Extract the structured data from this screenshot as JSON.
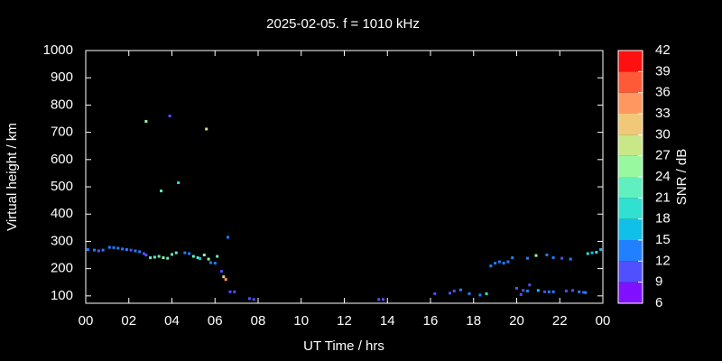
{
  "chart_data": {
    "type": "scatter",
    "title": "2025-02-05. f = 1010 kHz",
    "x_label": "UT Time / hrs",
    "y_label": "Virtual height / km",
    "colorbar_label": "SNR / dB",
    "xlim": [
      0,
      24
    ],
    "xticks": [
      {
        "value": 0,
        "label": "00"
      },
      {
        "value": 2,
        "label": "02"
      },
      {
        "value": 4,
        "label": "04"
      },
      {
        "value": 6,
        "label": "06"
      },
      {
        "value": 8,
        "label": "08"
      },
      10,
      12,
      14,
      16,
      18,
      20,
      22,
      {
        "value": 24,
        "label": "00"
      }
    ],
    "ylim": [
      73,
      1000
    ],
    "yticks": [
      100,
      200,
      300,
      400,
      500,
      600,
      700,
      800,
      900,
      1000
    ],
    "clim": [
      6,
      42
    ],
    "cticks": [
      6,
      9,
      12,
      15,
      18,
      21,
      24,
      27,
      30,
      33,
      36,
      39,
      42
    ],
    "colorscale": [
      "#8010ff",
      "#5050ff",
      "#2080ff",
      "#10c0e8",
      "#30e0d0",
      "#60f0c0",
      "#98f8a0",
      "#c8e888",
      "#f0c878",
      "#ff9860",
      "#ff5a38",
      "#ff1010"
    ],
    "x": [
      0.1,
      0.4,
      0.6,
      0.8,
      1.1,
      1.3,
      1.5,
      1.7,
      1.9,
      2.1,
      2.3,
      2.5,
      2.7,
      2.8,
      2.8,
      3.0,
      3.2,
      3.4,
      3.5,
      3.6,
      3.8,
      3.9,
      4.0,
      4.2,
      4.3,
      4.6,
      4.8,
      5.0,
      5.2,
      5.3,
      5.5,
      5.6,
      5.7,
      5.8,
      6.0,
      6.1,
      6.3,
      6.4,
      6.5,
      6.6,
      6.7,
      6.9,
      7.6,
      7.8,
      13.6,
      13.8,
      16.2,
      16.9,
      17.1,
      17.4,
      17.8,
      18.3,
      18.6,
      18.8,
      19.0,
      19.2,
      19.4,
      19.6,
      19.8,
      20.0,
      20.2,
      20.3,
      20.5,
      20.6,
      20.5,
      20.9,
      21.0,
      21.3,
      21.4,
      21.5,
      21.7,
      21.7,
      22.1,
      22.3,
      22.5,
      22.6,
      22.9,
      23.1,
      23.2,
      23.3,
      23.5,
      23.7,
      23.9
    ],
    "y": [
      270,
      268,
      265,
      268,
      278,
      277,
      275,
      272,
      270,
      268,
      265,
      262,
      255,
      250,
      740,
      240,
      242,
      245,
      485,
      240,
      238,
      760,
      252,
      258,
      515,
      258,
      255,
      245,
      240,
      237,
      250,
      712,
      235,
      222,
      220,
      245,
      190,
      170,
      160,
      315,
      115,
      115,
      90,
      87,
      87,
      87,
      108,
      110,
      118,
      122,
      108,
      103,
      108,
      210,
      220,
      225,
      220,
      225,
      240,
      128,
      105,
      120,
      118,
      140,
      238,
      248,
      120,
      115,
      250,
      115,
      115,
      240,
      238,
      118,
      235,
      120,
      115,
      113,
      112,
      255,
      258,
      260,
      270
    ],
    "snr": [
      12,
      12,
      11,
      12,
      13,
      12,
      12,
      13,
      12,
      11,
      12,
      12,
      11,
      10,
      24,
      21,
      22,
      23,
      21,
      24,
      22,
      10,
      21,
      23,
      18,
      12,
      12,
      22,
      22,
      17,
      24,
      27,
      24,
      12,
      13,
      21,
      10,
      30,
      33,
      13,
      10,
      10,
      10,
      10,
      10,
      10,
      10,
      10,
      10,
      12,
      12,
      12,
      18,
      14,
      13,
      12,
      12,
      12,
      13,
      11,
      9,
      10,
      12,
      11,
      12,
      25,
      15,
      10,
      12,
      12,
      12,
      12,
      11,
      11,
      13,
      10,
      12,
      10,
      12,
      18,
      17,
      18,
      15
    ]
  }
}
